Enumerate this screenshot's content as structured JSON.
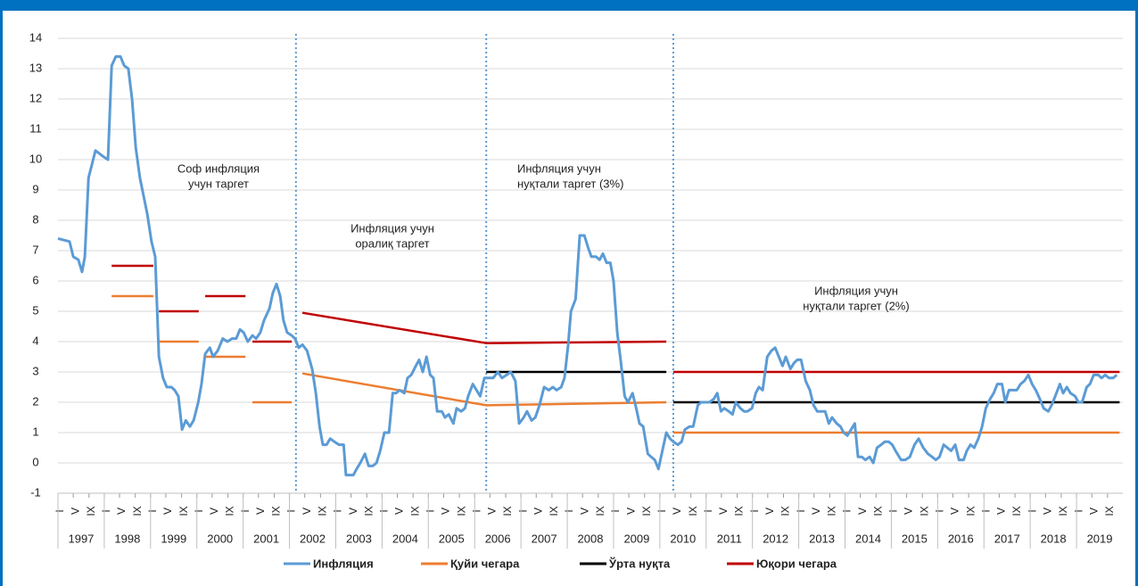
{
  "chart_data": {
    "type": "line",
    "xlim": [
      1997,
      2020
    ],
    "ylim": [
      -1,
      14
    ],
    "yticks": [
      -1,
      0,
      1,
      2,
      3,
      4,
      5,
      6,
      7,
      8,
      9,
      10,
      11,
      12,
      13,
      14
    ],
    "grid": true,
    "legend": "bottom",
    "year_labels": [
      "1997",
      "1998",
      "1999",
      "2000",
      "2001",
      "2002",
      "2003",
      "2004",
      "2005",
      "2006",
      "2007",
      "2008",
      "2009",
      "2010",
      "2011",
      "2012",
      "2013",
      "2014",
      "2015",
      "2016",
      "2017",
      "2018",
      "2019"
    ],
    "xticks": [
      {
        "value": 1997,
        "label": "I"
      },
      {
        "value": 1997.33,
        "label": "V"
      },
      {
        "value": 1997.67,
        "label": "IX"
      },
      {
        "value": 1998,
        "label": "I"
      },
      {
        "value": 1998.33,
        "label": "V"
      },
      {
        "value": 1998.67,
        "label": "IX"
      },
      {
        "value": 1999,
        "label": "I"
      },
      {
        "value": 1999.33,
        "label": "V"
      },
      {
        "value": 1999.67,
        "label": "IX"
      },
      {
        "value": 2000,
        "label": "I"
      },
      {
        "value": 2000.33,
        "label": "V"
      },
      {
        "value": 2000.67,
        "label": "IX"
      },
      {
        "value": 2001,
        "label": "I"
      },
      {
        "value": 2001.33,
        "label": "V"
      },
      {
        "value": 2001.67,
        "label": "IX"
      },
      {
        "value": 2002,
        "label": "I"
      },
      {
        "value": 2002.33,
        "label": "V"
      },
      {
        "value": 2002.67,
        "label": "IX"
      },
      {
        "value": 2003,
        "label": "I"
      },
      {
        "value": 2003.33,
        "label": "V"
      },
      {
        "value": 2003.67,
        "label": "IX"
      },
      {
        "value": 2004,
        "label": "I"
      },
      {
        "value": 2004.33,
        "label": "V"
      },
      {
        "value": 2004.67,
        "label": "IX"
      },
      {
        "value": 2005,
        "label": "I"
      },
      {
        "value": 2005.33,
        "label": "V"
      },
      {
        "value": 2005.67,
        "label": "IX"
      },
      {
        "value": 2006,
        "label": "I"
      },
      {
        "value": 2006.33,
        "label": "V"
      },
      {
        "value": 2006.67,
        "label": "IX"
      },
      {
        "value": 2007,
        "label": "I"
      },
      {
        "value": 2007.33,
        "label": "V"
      },
      {
        "value": 2007.67,
        "label": "IX"
      },
      {
        "value": 2008,
        "label": "I"
      },
      {
        "value": 2008.33,
        "label": "V"
      },
      {
        "value": 2008.67,
        "label": "IX"
      },
      {
        "value": 2009,
        "label": "I"
      },
      {
        "value": 2009.33,
        "label": "V"
      },
      {
        "value": 2009.67,
        "label": "IX"
      },
      {
        "value": 2010,
        "label": "I"
      },
      {
        "value": 2010.33,
        "label": "V"
      },
      {
        "value": 2010.67,
        "label": "IX"
      },
      {
        "value": 2011,
        "label": "I"
      },
      {
        "value": 2011.33,
        "label": "V"
      },
      {
        "value": 2011.67,
        "label": "IX"
      },
      {
        "value": 2012,
        "label": "I"
      },
      {
        "value": 2012.33,
        "label": "V"
      },
      {
        "value": 2012.67,
        "label": "IX"
      },
      {
        "value": 2013,
        "label": "I"
      },
      {
        "value": 2013.33,
        "label": "V"
      },
      {
        "value": 2013.67,
        "label": "IX"
      },
      {
        "value": 2014,
        "label": "I"
      },
      {
        "value": 2014.33,
        "label": "V"
      },
      {
        "value": 2014.67,
        "label": "IX"
      },
      {
        "value": 2015,
        "label": "I"
      },
      {
        "value": 2015.33,
        "label": "V"
      },
      {
        "value": 2015.67,
        "label": "IX"
      },
      {
        "value": 2016,
        "label": "I"
      },
      {
        "value": 2016.33,
        "label": "V"
      },
      {
        "value": 2016.67,
        "label": "IX"
      },
      {
        "value": 2017,
        "label": "I"
      },
      {
        "value": 2017.33,
        "label": "V"
      },
      {
        "value": 2017.67,
        "label": "IX"
      },
      {
        "value": 2018,
        "label": "I"
      },
      {
        "value": 2018.33,
        "label": "V"
      },
      {
        "value": 2018.67,
        "label": "IX"
      },
      {
        "value": 2019,
        "label": "I"
      },
      {
        "value": 2019.33,
        "label": "V"
      },
      {
        "value": 2019.67,
        "label": "IX"
      }
    ],
    "vlines": [
      2002.14,
      2006.25,
      2010.29
    ],
    "annotations": [
      [
        "Соф инфляция",
        "учун таргет"
      ],
      [
        "Инфляция учун",
        "оралиқ таргет"
      ],
      [
        "Инфляция учун",
        "нуқтали таргет (3%)"
      ],
      [
        "Инфляция учун",
        "нуқтали таргет (2%)"
      ]
    ],
    "series": [
      {
        "name": "Инфляция",
        "color": "#5b9bd5",
        "x": [
          1997.0,
          1997.25,
          1997.33,
          1997.44,
          1997.52,
          1997.58,
          1997.66,
          1997.81,
          1997.98,
          1998.08,
          1998.16,
          1998.25,
          1998.35,
          1998.43,
          1998.52,
          1998.6,
          1998.68,
          1998.77,
          1998.93,
          1999.02,
          1999.1,
          1999.18,
          1999.27,
          1999.35,
          1999.45,
          1999.52,
          1999.6,
          1999.68,
          1999.76,
          1999.85,
          1999.93,
          2000.03,
          2000.1,
          2000.18,
          2000.28,
          2000.35,
          2000.45,
          2000.56,
          2000.66,
          2000.76,
          2000.85,
          2000.93,
          2001.01,
          2001.1,
          2001.2,
          2001.28,
          2001.37,
          2001.45,
          2001.57,
          2001.64,
          2001.72,
          2001.8,
          2001.87,
          2001.95,
          2002.05,
          2002.12,
          2002.2,
          2002.28,
          2002.38,
          2002.49,
          2002.57,
          2002.65,
          2002.72,
          2002.8,
          2002.88,
          2002.97,
          2003.07,
          2003.17,
          2003.22,
          2003.38,
          2003.45,
          2003.53,
          2003.63,
          2003.71,
          2003.8,
          2003.88,
          2003.96,
          2004.05,
          2004.15,
          2004.23,
          2004.3,
          2004.38,
          2004.48,
          2004.55,
          2004.63,
          2004.73,
          2004.8,
          2004.88,
          2004.96,
          2005.04,
          2005.11,
          2005.19,
          2005.29,
          2005.36,
          2005.44,
          2005.54,
          2005.61,
          2005.71,
          2005.79,
          2005.86,
          2005.96,
          2006.04,
          2006.12,
          2006.21,
          2006.31,
          2006.4,
          2006.5,
          2006.59,
          2006.69,
          2006.78,
          2006.88,
          2006.96,
          2007.06,
          2007.13,
          2007.23,
          2007.31,
          2007.4,
          2007.5,
          2007.6,
          2007.69,
          2007.77,
          2007.87,
          2007.94,
          2008.02,
          2008.08,
          2008.18,
          2008.27,
          2008.37,
          2008.45,
          2008.52,
          2008.62,
          2008.7,
          2008.77,
          2008.85,
          2008.93,
          2009.0,
          2009.08,
          2009.16,
          2009.24,
          2009.31,
          2009.41,
          2009.49,
          2009.56,
          2009.64,
          2009.74,
          2009.81,
          2009.89,
          2009.97,
          2010.04,
          2010.14,
          2010.22,
          2010.29,
          2010.39,
          2010.47,
          2010.54,
          2010.64,
          2010.72,
          2010.82,
          2010.89,
          2011.07,
          2011.16,
          2011.24,
          2011.32,
          2011.39,
          2011.49,
          2011.57,
          2011.64,
          2011.74,
          2011.82,
          2011.89,
          2011.99,
          2012.07,
          2012.14,
          2012.22,
          2012.32,
          2012.41,
          2012.49,
          2012.57,
          2012.65,
          2012.72,
          2012.82,
          2012.9,
          2012.97,
          2013.05,
          2013.15,
          2013.24,
          2013.32,
          2013.4,
          2013.57,
          2013.65,
          2013.72,
          2013.82,
          2013.9,
          2013.97,
          2014.05,
          2014.13,
          2014.21,
          2014.28,
          2014.36,
          2014.44,
          2014.53,
          2014.61,
          2014.69,
          2014.78,
          2014.86,
          2014.94,
          2015.02,
          2015.09,
          2015.21,
          2015.3,
          2015.4,
          2015.5,
          2015.59,
          2015.69,
          2015.79,
          2015.88,
          2015.96,
          2016.04,
          2016.13,
          2016.21,
          2016.29,
          2016.38,
          2016.46,
          2016.56,
          2016.63,
          2016.71,
          2016.79,
          2016.88,
          2016.96,
          2017.04,
          2017.13,
          2017.21,
          2017.29,
          2017.39,
          2017.46,
          2017.54,
          2017.71,
          2017.79,
          2017.87,
          2017.96,
          2018.04,
          2018.12,
          2018.21,
          2018.29,
          2018.39,
          2018.46,
          2018.54,
          2018.64,
          2018.71,
          2018.79,
          2018.87,
          2018.97,
          2019.04,
          2019.12,
          2019.22,
          2019.29,
          2019.37,
          2019.47,
          2019.54,
          2019.62,
          2019.7,
          2019.79,
          2019.87
        ],
        "values": [
          7.4,
          7.3,
          6.8,
          6.7,
          6.3,
          6.8,
          9.4,
          10.3,
          10.1,
          10.0,
          13.1,
          13.4,
          13.4,
          13.1,
          13.0,
          12.0,
          10.4,
          9.4,
          8.2,
          7.3,
          6.8,
          3.5,
          2.8,
          2.5,
          2.5,
          2.4,
          2.2,
          1.1,
          1.4,
          1.2,
          1.4,
          2.0,
          2.6,
          3.6,
          3.8,
          3.5,
          3.7,
          4.1,
          4.0,
          4.1,
          4.1,
          4.4,
          4.3,
          4.0,
          4.2,
          4.1,
          4.3,
          4.7,
          5.1,
          5.6,
          5.9,
          5.5,
          4.7,
          4.3,
          4.2,
          4.1,
          3.8,
          3.9,
          3.7,
          3.1,
          2.3,
          1.2,
          0.6,
          0.6,
          0.8,
          0.7,
          0.6,
          0.6,
          -0.4,
          -0.4,
          -0.2,
          0.0,
          0.3,
          -0.1,
          -0.1,
          0.0,
          0.4,
          1.0,
          1.0,
          2.3,
          2.3,
          2.4,
          2.3,
          2.8,
          2.9,
          3.2,
          3.4,
          3.0,
          3.5,
          2.9,
          2.8,
          1.7,
          1.7,
          1.5,
          1.6,
          1.3,
          1.8,
          1.7,
          1.8,
          2.2,
          2.6,
          2.4,
          2.2,
          2.8,
          2.8,
          2.8,
          3.0,
          2.8,
          2.9,
          3.0,
          2.7,
          1.3,
          1.5,
          1.7,
          1.4,
          1.5,
          1.9,
          2.5,
          2.4,
          2.5,
          2.4,
          2.5,
          2.8,
          3.9,
          5.0,
          5.4,
          7.5,
          7.5,
          7.1,
          6.8,
          6.8,
          6.7,
          6.9,
          6.6,
          6.6,
          6.0,
          4.3,
          3.3,
          2.2,
          2.0,
          2.3,
          1.8,
          1.3,
          1.2,
          0.3,
          0.2,
          0.1,
          -0.2,
          0.3,
          1.0,
          0.8,
          0.7,
          0.6,
          0.7,
          1.1,
          1.2,
          1.2,
          1.9,
          2.0,
          2.0,
          2.1,
          2.3,
          1.7,
          1.8,
          1.7,
          1.6,
          2.0,
          1.8,
          1.7,
          1.7,
          1.8,
          2.3,
          2.5,
          2.4,
          3.5,
          3.7,
          3.8,
          3.5,
          3.2,
          3.5,
          3.1,
          3.3,
          3.4,
          3.4,
          2.7,
          2.4,
          1.9,
          1.7,
          1.7,
          1.3,
          1.5,
          1.3,
          1.2,
          1.0,
          0.9,
          1.1,
          1.3,
          0.2,
          0.2,
          0.1,
          0.2,
          0.0,
          0.5,
          0.6,
          0.7,
          0.7,
          0.6,
          0.4,
          0.1,
          0.1,
          0.2,
          0.6,
          0.8,
          0.5,
          0.3,
          0.2,
          0.1,
          0.2,
          0.6,
          0.5,
          0.4,
          0.6,
          0.1,
          0.1,
          0.4,
          0.6,
          0.5,
          0.8,
          1.2,
          1.8,
          2.1,
          2.3,
          2.6,
          2.6,
          2.0,
          2.4,
          2.4,
          2.6,
          2.7,
          2.9,
          2.6,
          2.4,
          2.1,
          1.8,
          1.7,
          1.9,
          2.2,
          2.6,
          2.3,
          2.5,
          2.3,
          2.2,
          2.0,
          2.0,
          2.5,
          2.6,
          2.9,
          2.9,
          2.8,
          2.9,
          2.8,
          2.8,
          2.9
        ]
      },
      {
        "name": "Қуйи чегара",
        "color": "#ed7d31",
        "x": [
          1998.16,
          1999.06,
          null,
          1999.18,
          2000.04,
          null,
          2000.18,
          2001.05,
          null,
          2001.2,
          2002.05,
          null,
          2002.28,
          2006.25,
          2010.14,
          null,
          2010.29,
          2019.93
        ],
        "values": [
          5.5,
          5.5,
          null,
          4.0,
          4.0,
          null,
          3.5,
          3.5,
          null,
          2.0,
          2.0,
          null,
          2.95,
          1.9,
          2.0,
          null,
          1.0,
          1.0
        ]
      },
      {
        "name": "Ўрта нуқта",
        "color": "#000000",
        "x": [
          2006.25,
          2010.14,
          null,
          2010.29,
          2019.93
        ],
        "values": [
          3.0,
          3.0,
          null,
          2.0,
          2.0
        ]
      },
      {
        "name": "Юқори чегара",
        "color": "#c00000",
        "x": [
          1998.16,
          1999.06,
          null,
          1999.18,
          2000.04,
          null,
          2000.18,
          2001.05,
          null,
          2001.2,
          2002.05,
          null,
          2002.28,
          2006.25,
          2010.14,
          null,
          2010.29,
          2019.93
        ],
        "values": [
          6.5,
          6.5,
          null,
          5.0,
          5.0,
          null,
          5.5,
          5.5,
          null,
          4.0,
          4.0,
          null,
          4.95,
          3.95,
          4.0,
          null,
          3.0,
          3.0
        ]
      }
    ]
  }
}
